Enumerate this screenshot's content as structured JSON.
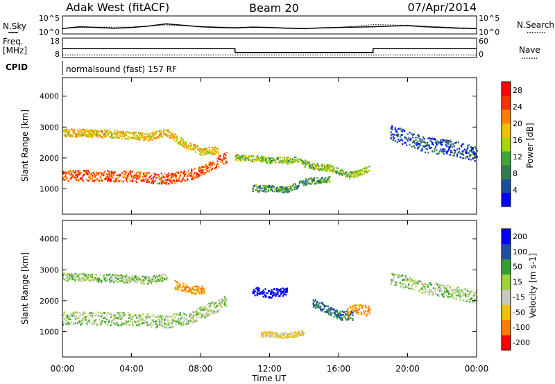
{
  "header": {
    "station": "Adak West (fitACF)",
    "beam": "Beam 20",
    "date": "07/Apr/2014"
  },
  "status_panel": {
    "nsky_label": "N.Sky",
    "nsearch_label": "N.Search",
    "noise_ticks": [
      "10^5",
      "10^0"
    ],
    "freq_label": "Freq.",
    "freq_unit": "[MHz]",
    "freq_ticks": [
      "18",
      "8"
    ],
    "nave_label": "Nave",
    "nave_ticks": [
      "60",
      "0"
    ],
    "cpid_label": "CPID",
    "cpid_text": "normalsound (fast) 157 RF"
  },
  "colors": {
    "power": [
      "#0000ff",
      "#1a4fa0",
      "#2f7d4f",
      "#3fa63a",
      "#a8d400",
      "#f0c000",
      "#ff8000",
      "#ff3000",
      "#ff0000"
    ],
    "velocity": [
      "#ff0000",
      "#ff8000",
      "#f0c000",
      "#c8c8c0",
      "#9fd040",
      "#30a030",
      "#1f4fa0",
      "#0000ff"
    ]
  },
  "chart_data": [
    {
      "type": "line",
      "name": "noise",
      "series": [
        {
          "name": "N.Sky",
          "style": "solid",
          "x": [
            0.0,
            1.0,
            2.0,
            3.0,
            4.0,
            5.0,
            6.0,
            7.0,
            8.0,
            9.0,
            10.0,
            11.0,
            12.0,
            13.0,
            14.0,
            15.0,
            16.0,
            17.0,
            18.0,
            19.0,
            20.0,
            21.0,
            22.0,
            23.0,
            24.0
          ],
          "values": [
            1.5,
            2.0,
            1.8,
            1.6,
            1.8,
            2.2,
            2.8,
            2.4,
            2.0,
            1.8,
            1.7,
            1.9,
            1.8,
            1.6,
            1.5,
            1.7,
            1.8,
            1.9,
            2.0,
            2.2,
            2.3,
            2.0,
            1.8,
            1.6,
            1.5
          ]
        },
        {
          "name": "N.Search",
          "style": "dotted",
          "x": [
            0.0,
            2.0,
            4.0,
            6.0,
            8.0,
            10.0,
            12.0,
            14.0,
            16.0,
            18.0,
            20.0,
            22.0,
            24.0
          ],
          "values": [
            1.6,
            1.9,
            1.9,
            2.5,
            2.1,
            1.8,
            1.8,
            1.6,
            1.8,
            2.6,
            2.4,
            1.9,
            1.6
          ]
        }
      ],
      "xlim": [
        0,
        24
      ],
      "ylim": [
        0,
        5
      ],
      "yscale": "log10"
    },
    {
      "type": "line",
      "name": "frequency",
      "series": [
        {
          "name": "Freq.",
          "style": "solid",
          "x": [
            0.0,
            10.0,
            10.0,
            18.0,
            18.0,
            24.0
          ],
          "values": [
            12.6,
            12.6,
            10.6,
            10.6,
            12.6,
            12.6
          ]
        },
        {
          "name": "Nave",
          "style": "dotted",
          "x": [
            0.0,
            24.0
          ],
          "values": [
            8,
            8
          ]
        }
      ],
      "ylim_freq": [
        8,
        18
      ],
      "ylim_nave": [
        0,
        60
      ]
    },
    {
      "type": "heatmap",
      "name": "power",
      "xlabel": "Time UT",
      "ylabel": "Slant Range [km]",
      "xlim": [
        0,
        24
      ],
      "ylim": [
        180,
        4600
      ],
      "x_tick_labels": [
        "00:00",
        "04:00",
        "08:00",
        "12:00",
        "16:00",
        "20:00",
        "00:00"
      ],
      "y_ticks": [
        1000,
        2000,
        3000,
        4000
      ],
      "colorbar": {
        "label": "Power [dB]",
        "ticks": [
          4,
          8,
          12,
          16,
          20,
          24,
          28
        ],
        "range": [
          0,
          30
        ]
      },
      "features": [
        {
          "feature": "strong backscatter band",
          "points": [
            [
              0.0,
              1400
            ],
            [
              2.0,
              1400
            ],
            [
              4.0,
              1380
            ],
            [
              6.0,
              1300
            ],
            [
              7.5,
              1450
            ],
            [
              8.5,
              1700
            ],
            [
              9.5,
              2000
            ]
          ],
          "width_km": 250,
          "value": 24,
          "t_start": 0,
          "t_end": 9.5
        },
        {
          "feature": "upper band",
          "points": [
            [
              0.0,
              2800
            ],
            [
              3.0,
              2750
            ],
            [
              5.0,
              2650
            ],
            [
              6.0,
              2800
            ],
            [
              7.0,
              2450
            ],
            [
              8.0,
              2200
            ],
            [
              9.0,
              2200
            ]
          ],
          "width_km": 180,
          "value": 18,
          "t_start": 0,
          "t_end": 9
        },
        {
          "feature": "mid-day patches",
          "points": [
            [
              10.0,
              2000
            ],
            [
              12.0,
              1900
            ],
            [
              13.5,
              1900
            ],
            [
              14.5,
              1700
            ],
            [
              15.5,
              1650
            ],
            [
              16.5,
              1400
            ],
            [
              17.2,
              1500
            ],
            [
              17.8,
              1650
            ]
          ],
          "width_km": 150,
          "value": 14,
          "t_start": 10,
          "t_end": 17.8
        },
        {
          "feature": "lower patches",
          "points": [
            [
              11.0,
              1000
            ],
            [
              13.0,
              950
            ],
            [
              14.0,
              1200
            ],
            [
              15.5,
              1300
            ]
          ],
          "width_km": 150,
          "value": 10,
          "t_start": 11,
          "t_end": 15.5
        },
        {
          "feature": "evening far-range scatter",
          "points": [
            [
              19.0,
              2800
            ],
            [
              21.0,
              2400
            ],
            [
              22.5,
              2300
            ],
            [
              24.0,
              2100
            ]
          ],
          "width_km": 350,
          "value": 5,
          "t_start": 19,
          "t_end": 24
        }
      ]
    },
    {
      "type": "heatmap",
      "name": "velocity",
      "xlabel": "Time UT",
      "ylabel": "Slant Range [km]",
      "xlim": [
        0,
        24
      ],
      "ylim": [
        180,
        4600
      ],
      "x_tick_labels": [
        "00:00",
        "04:00",
        "08:00",
        "12:00",
        "16:00",
        "20:00",
        "00:00"
      ],
      "y_ticks": [
        1000,
        2000,
        3000,
        4000
      ],
      "colorbar": {
        "label": "Velocity [m s-1]",
        "ticks": [
          200,
          100,
          50,
          15,
          -15,
          -50,
          -100,
          -200
        ],
        "range": [
          -250,
          250
        ]
      },
      "features": [
        {
          "feature": "ground-scatter band",
          "points": [
            [
              0.0,
              1400
            ],
            [
              2.0,
              1400
            ],
            [
              4.0,
              1380
            ],
            [
              6.0,
              1300
            ],
            [
              7.5,
              1450
            ],
            [
              8.5,
              1700
            ],
            [
              9.5,
              2000
            ]
          ],
          "width_km": 300,
          "value": 0,
          "t_start": 0,
          "t_end": 9.5
        },
        {
          "feature": "upper ground scatter",
          "points": [
            [
              0.0,
              2750
            ],
            [
              3.0,
              2700
            ],
            [
              5.0,
              2650
            ],
            [
              6.0,
              2750
            ]
          ],
          "width_km": 180,
          "value": 0,
          "t_start": 0,
          "t_end": 6
        },
        {
          "feature": "negative velocity cloud",
          "points": [
            [
              6.5,
              2500
            ],
            [
              7.5,
              2300
            ],
            [
              8.2,
              2350
            ]
          ],
          "width_km": 200,
          "value": -120,
          "t_start": 6.5,
          "t_end": 8.2
        },
        {
          "feature": "positive velocity patch",
          "points": [
            [
              11.0,
              2300
            ],
            [
              12.0,
              2200
            ],
            [
              13.0,
              2300
            ]
          ],
          "width_km": 200,
          "value": 180,
          "t_start": 11,
          "t_end": 13
        },
        {
          "feature": "shear structure",
          "points": [
            [
              14.5,
              1900
            ],
            [
              15.3,
              1700
            ],
            [
              16.0,
              1500
            ],
            [
              16.8,
              1500
            ]
          ],
          "width_km": 200,
          "value": 60,
          "t_start": 14.5,
          "t_end": 16.8
        },
        {
          "feature": "shear structure negative",
          "points": [
            [
              16.5,
              1600
            ],
            [
              17.0,
              1700
            ],
            [
              17.8,
              1650
            ]
          ],
          "width_km": 250,
          "value": -120,
          "t_start": 16.5,
          "t_end": 17.8
        },
        {
          "feature": "lower ionospheric patch",
          "points": [
            [
              11.5,
              900
            ],
            [
              13.0,
              850
            ],
            [
              14.0,
              950
            ]
          ],
          "width_km": 120,
          "value": -60,
          "t_start": 11.5,
          "t_end": 14
        },
        {
          "feature": "evening ground scatter",
          "points": [
            [
              19.0,
              2700
            ],
            [
              21.0,
              2400
            ],
            [
              24.0,
              2100
            ]
          ],
          "width_km": 300,
          "value": 0,
          "t_start": 19,
          "t_end": 24
        }
      ]
    }
  ]
}
